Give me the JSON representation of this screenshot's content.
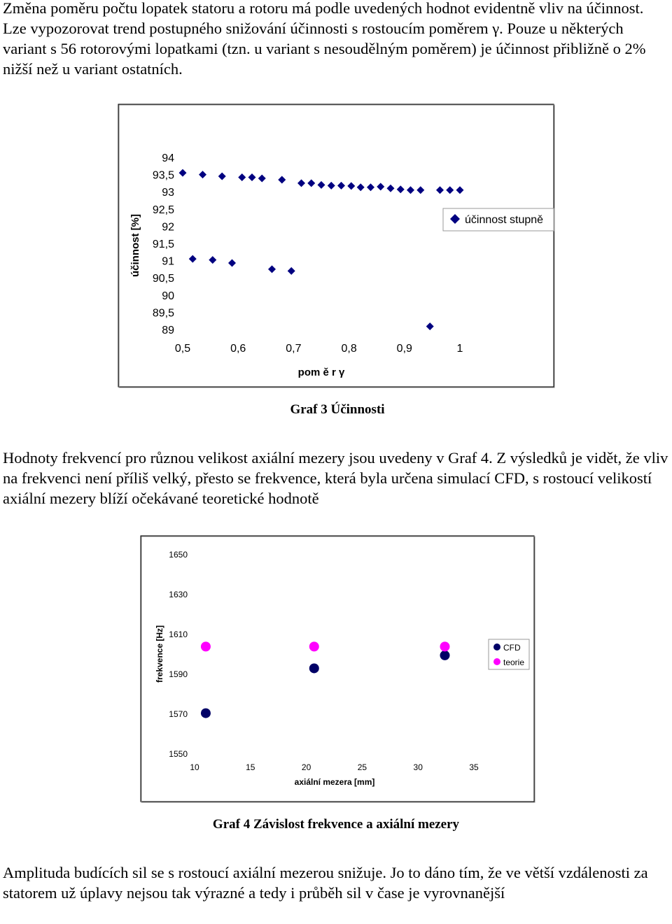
{
  "paragraphs": {
    "intro": "Změna poměru počtu lopatek statoru a rotoru má podle uvedených hodnot evidentně vliv na účinnost. Lze vypozorovat trend postupného snižování účinnosti s rostoucím poměrem γ. Pouze u některých variant s 56 rotorovými lopatkami (tzn. u variant s nesoudělným poměrem) je účinnost přibližně o 2% nižší než u variant ostatních.",
    "middle": "Hodnoty frekvencí pro různou velikost axiální mezery jsou uvedeny v Graf 4. Z výsledků je vidět, že vliv na frekvenci není příliš velký, přesto se frekvence, která byla určena simulací CFD, s rostoucí velikostí axiální mezery blíží očekávané teoretické hodnotě",
    "end": "Amplituda budících sil se s rostoucí axiální mezerou snižuje. Jo to dáno tím, že ve větší vzdálenosti za statorem už úplavy nejsou tak výrazné a tedy i průběh sil v čase je vyrovnanější"
  },
  "captions": {
    "graph3": "Graf 3 Účinnosti",
    "graph4": "Graf 4 Závislost frekvence a axiální mezery"
  },
  "chart_data": [
    {
      "type": "scatter",
      "title": "",
      "xlabel": "pom ě r γ",
      "ylabel": "účinnost [%]",
      "xlim": [
        0.5,
        1.0
      ],
      "ylim": [
        89,
        94
      ],
      "x_ticks": [
        "0,5",
        "0,6",
        "0,7",
        "0,8",
        "0,9",
        "1"
      ],
      "y_ticks": [
        "94",
        "93,5",
        "93",
        "92,5",
        "92",
        "91,5",
        "91",
        "90,5",
        "90",
        "89,5",
        "89"
      ],
      "grid": false,
      "legend_position": "right",
      "marker": "diamond",
      "color": "#000080",
      "series": [
        {
          "name": "účinnost stupně",
          "x": [
            0.5,
            0.518,
            0.536,
            0.554,
            0.571,
            0.589,
            0.607,
            0.625,
            0.643,
            0.661,
            0.679,
            0.696,
            0.714,
            0.732,
            0.75,
            0.768,
            0.786,
            0.804,
            0.821,
            0.839,
            0.857,
            0.875,
            0.893,
            0.911,
            0.929,
            0.946,
            0.964,
            0.982,
            1.0
          ],
          "y": [
            93.55,
            91.05,
            93.5,
            91.02,
            93.45,
            90.93,
            93.42,
            93.42,
            93.39,
            90.75,
            93.35,
            90.7,
            93.25,
            93.25,
            93.2,
            93.18,
            93.18,
            93.17,
            93.13,
            93.13,
            93.15,
            93.1,
            93.07,
            93.05,
            93.05,
            89.09,
            93.05,
            93.05,
            93.05
          ]
        }
      ]
    },
    {
      "type": "scatter",
      "title": "",
      "xlabel": "axiální mezera [mm]",
      "ylabel": "frekvence [Hz]",
      "xlim": [
        10,
        35
      ],
      "ylim": [
        1550,
        1650
      ],
      "x_ticks": [
        "10",
        "15",
        "20",
        "25",
        "30",
        "35"
      ],
      "y_ticks": [
        "1650",
        "1630",
        "1610",
        "1590",
        "1570",
        "1550"
      ],
      "grid": false,
      "legend_position": "right",
      "marker": "circle",
      "series": [
        {
          "name": "CFD",
          "color": "#000066",
          "x": [
            11,
            20.7,
            32.4
          ],
          "y": [
            1570.5,
            1593,
            1599.5
          ]
        },
        {
          "name": "teorie",
          "color": "#ff00ff",
          "x": [
            11,
            20.7,
            32.4
          ],
          "y": [
            1603.9,
            1603.9,
            1603.9
          ]
        }
      ]
    }
  ]
}
